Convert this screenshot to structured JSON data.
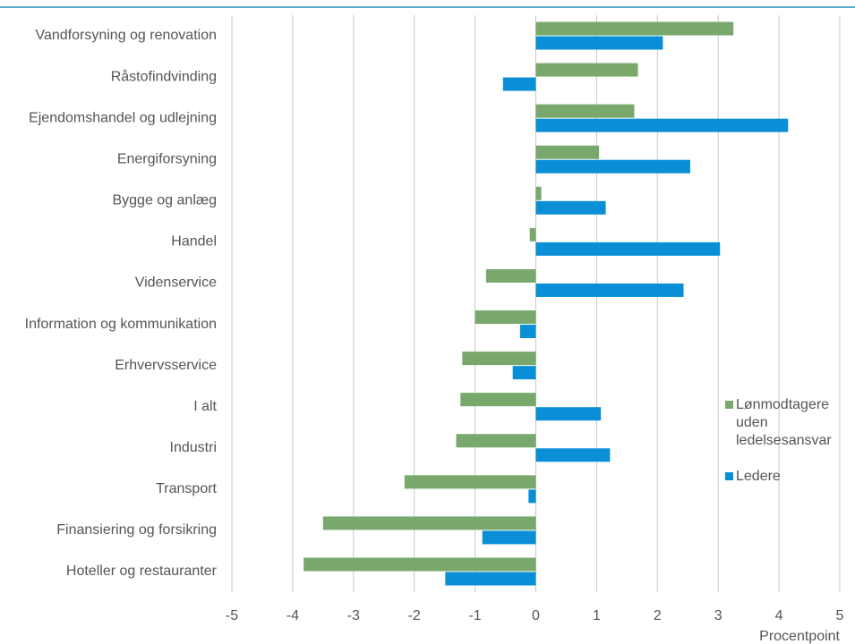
{
  "chart_data": {
    "type": "barh",
    "categories": [
      "Vandforsyning og renovation",
      "Råstofindvinding",
      "Ejendomshandel og udlejning",
      "Energiforsyning",
      "Bygge og anlæg",
      "Handel",
      "Videnservice",
      "Information og kommunikation",
      "Erhvervsservice",
      "I alt ",
      "Industri",
      "Transport",
      "Finansiering og forsikring",
      "Hoteller og restauranter"
    ],
    "series": [
      {
        "name": "Lønmodtagere uden ledelsesansvar",
        "color": "#78a86c",
        "values": [
          3.25,
          1.68,
          1.62,
          1.04,
          0.09,
          -0.1,
          -0.82,
          -1.0,
          -1.21,
          -1.24,
          -1.31,
          -2.16,
          -3.5,
          -3.82
        ]
      },
      {
        "name": "Ledere",
        "color": "#0a8fd6",
        "values": [
          2.09,
          -0.54,
          4.15,
          2.54,
          1.15,
          3.03,
          2.43,
          -0.26,
          -0.38,
          1.07,
          1.22,
          -0.12,
          -0.88,
          -1.49
        ]
      }
    ],
    "xlabel": "Procentpoint",
    "xlim": [
      -5,
      5
    ],
    "xticks": [
      -5,
      -4,
      -3,
      -2,
      -1,
      0,
      1,
      2,
      3,
      4,
      5
    ],
    "grid": true
  }
}
